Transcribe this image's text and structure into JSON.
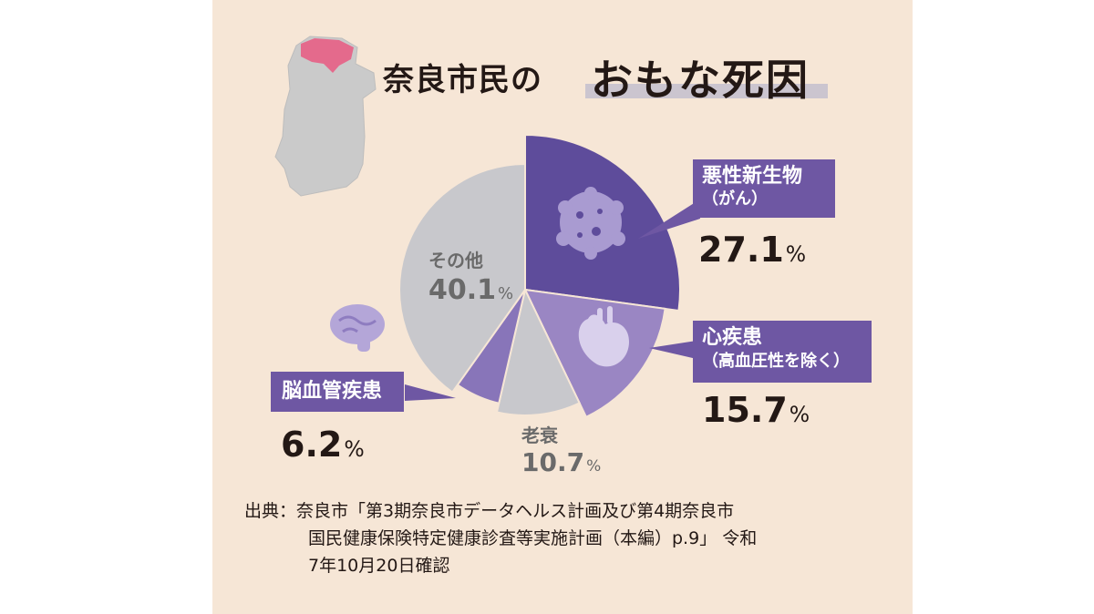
{
  "title": {
    "part1": "奈良市民の",
    "part2": "おもな死因"
  },
  "chart_data": {
    "type": "pie",
    "title": "奈良市民のおもな死因",
    "slices": [
      {
        "name": "悪性新生物（がん）",
        "value": 27.1,
        "color": "#5e4c9b"
      },
      {
        "name": "心疾患（高血圧性を除く）",
        "value": 15.7,
        "color": "#9a86c3"
      },
      {
        "name": "老衰",
        "value": 10.7,
        "color": "#c8c8cc"
      },
      {
        "name": "脳血管疾患",
        "value": 6.2,
        "color": "#8875b9"
      },
      {
        "name": "その他",
        "value": 40.1,
        "color": "#c8c8cc"
      }
    ]
  },
  "labels": {
    "cancer": {
      "line1": "悪性新生物",
      "line2": "（がん）",
      "value": "27.1",
      "unit": "%"
    },
    "heart": {
      "line1": "心疾患",
      "line2": "（高血圧性を除く）",
      "value": "15.7",
      "unit": "%"
    },
    "stroke": {
      "line1": "脳血管疾患",
      "value": "6.2",
      "unit": "%"
    },
    "senility": {
      "name": "老衰",
      "value": "10.7",
      "unit": "%"
    },
    "other": {
      "name": "その他",
      "value": "40.1",
      "unit": "%"
    }
  },
  "source": {
    "line1": "出典：奈良市「第3期奈良市データヘルス計画及び第4期奈良市",
    "line2": "国民健康保険特定健康診査等実施計画（本編）p.9」 令和",
    "line3": "7年10月20日確認"
  },
  "icons": [
    "nara-map-icon",
    "cancer-cell-icon",
    "heart-icon",
    "brain-icon"
  ]
}
